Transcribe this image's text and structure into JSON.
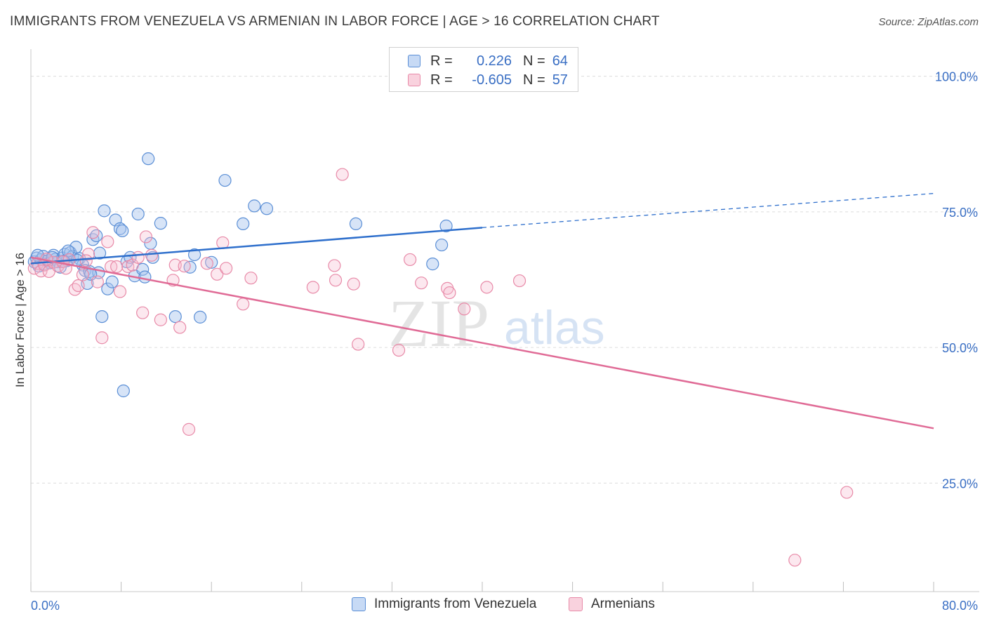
{
  "title": "IMMIGRANTS FROM VENEZUELA VS ARMENIAN IN LABOR FORCE | AGE > 16 CORRELATION CHART",
  "source": "Source: ZipAtlas.com",
  "watermark": {
    "zip": "ZIP",
    "atlas": "atlas"
  },
  "legend_top": {
    "rows": [
      {
        "r_label": "R =",
        "r_value": "0.226",
        "n_label": "N =",
        "n_value": "64",
        "color": "#5b8fd6",
        "fill": "#b9d0f2"
      },
      {
        "r_label": "R =",
        "r_value": "-0.605",
        "n_label": "N =",
        "n_value": "57",
        "color": "#e88aa8",
        "fill": "#f7c9d7"
      }
    ]
  },
  "legend_bottom": {
    "items": [
      {
        "label": "Immigrants from Venezuela"
      },
      {
        "label": "Armenians"
      }
    ]
  },
  "colors": {
    "blue_stroke": "#5b8fd6",
    "blue_fill": "rgba(166,196,238,0.45)",
    "blue_line": "#2e6fcc",
    "pink_stroke": "#e88aa8",
    "pink_fill": "rgba(245,190,208,0.35)",
    "pink_line": "#e06b96",
    "axis_label": "#3a6fc4",
    "grid": "#dcdcdc"
  },
  "chart_data": {
    "type": "scatter",
    "ylabel": "In Labor Force | Age > 16",
    "xlim": [
      0,
      80
    ],
    "ylim": [
      5,
      105
    ],
    "x_tick_labels": [
      {
        "value": 0,
        "label": "0.0%"
      },
      {
        "value": 80,
        "label": "80.0%"
      }
    ],
    "y_tick_labels": [
      {
        "value": 100,
        "label": "100.0%"
      },
      {
        "value": 75,
        "label": "75.0%"
      },
      {
        "value": 50,
        "label": "50.0%"
      },
      {
        "value": 25,
        "label": "25.0%"
      }
    ],
    "y_gridlines": [
      100,
      75,
      50,
      25
    ],
    "x_minor_ticks": [
      0,
      8,
      16,
      24,
      32,
      40,
      48,
      56,
      64,
      72,
      80
    ],
    "series": [
      {
        "name": "Immigrants from Venezuela",
        "color": "#5b8fd6",
        "points": [
          [
            0.3,
            65.8
          ],
          [
            0.5,
            66.5
          ],
          [
            0.7,
            65.0
          ],
          [
            0.9,
            66.2
          ],
          [
            1.1,
            66.8
          ],
          [
            1.2,
            65.4
          ],
          [
            1.5,
            66.0
          ],
          [
            1.7,
            65.6
          ],
          [
            2.0,
            67.0
          ],
          [
            2.2,
            66.3
          ],
          [
            2.4,
            65.8
          ],
          [
            2.6,
            64.8
          ],
          [
            2.8,
            66.5
          ],
          [
            3.0,
            67.2
          ],
          [
            3.2,
            66.0
          ],
          [
            3.5,
            67.5
          ],
          [
            3.7,
            66.8
          ],
          [
            4.0,
            68.5
          ],
          [
            4.3,
            66.4
          ],
          [
            4.6,
            65.2
          ],
          [
            4.8,
            64.2
          ],
          [
            5.0,
            61.8
          ],
          [
            5.2,
            64.0
          ],
          [
            5.5,
            69.9
          ],
          [
            5.8,
            70.6
          ],
          [
            6.0,
            63.8
          ],
          [
            6.3,
            55.7
          ],
          [
            6.5,
            75.2
          ],
          [
            6.8,
            60.8
          ],
          [
            7.2,
            62.1
          ],
          [
            7.5,
            73.5
          ],
          [
            7.9,
            71.9
          ],
          [
            8.1,
            71.5
          ],
          [
            8.2,
            42.0
          ],
          [
            8.5,
            65.8
          ],
          [
            8.8,
            66.6
          ],
          [
            9.2,
            63.2
          ],
          [
            9.5,
            74.6
          ],
          [
            9.9,
            64.4
          ],
          [
            10.1,
            63.0
          ],
          [
            10.4,
            84.8
          ],
          [
            10.6,
            69.2
          ],
          [
            10.8,
            66.6
          ],
          [
            11.5,
            72.9
          ],
          [
            12.8,
            55.7
          ],
          [
            14.1,
            64.8
          ],
          [
            14.5,
            67.1
          ],
          [
            15.0,
            55.6
          ],
          [
            16.0,
            65.7
          ],
          [
            17.2,
            80.8
          ],
          [
            18.8,
            72.8
          ],
          [
            19.8,
            76.1
          ],
          [
            20.9,
            75.6
          ],
          [
            28.8,
            72.8
          ],
          [
            35.6,
            65.4
          ],
          [
            36.4,
            68.9
          ],
          [
            36.8,
            72.4
          ],
          [
            0.6,
            67.0
          ],
          [
            1.9,
            66.6
          ],
          [
            3.3,
            67.8
          ],
          [
            4.1,
            66.1
          ],
          [
            5.3,
            63.5
          ],
          [
            6.1,
            67.4
          ],
          [
            2.9,
            65.9
          ]
        ]
      },
      {
        "name": "Armenians",
        "color": "#e88aa8",
        "points": [
          [
            0.3,
            64.6
          ],
          [
            0.6,
            65.5
          ],
          [
            0.9,
            64.1
          ],
          [
            1.2,
            65.2
          ],
          [
            1.6,
            64.0
          ],
          [
            2.0,
            65.7
          ],
          [
            2.4,
            65.0
          ],
          [
            2.8,
            65.8
          ],
          [
            3.1,
            64.6
          ],
          [
            3.4,
            66.2
          ],
          [
            3.9,
            60.7
          ],
          [
            4.2,
            61.4
          ],
          [
            4.6,
            63.4
          ],
          [
            5.1,
            67.2
          ],
          [
            5.5,
            71.2
          ],
          [
            5.9,
            62.1
          ],
          [
            6.3,
            51.8
          ],
          [
            6.8,
            69.5
          ],
          [
            7.1,
            64.9
          ],
          [
            7.6,
            64.9
          ],
          [
            7.9,
            60.3
          ],
          [
            8.6,
            64.9
          ],
          [
            9.0,
            65.2
          ],
          [
            9.5,
            66.6
          ],
          [
            9.9,
            56.4
          ],
          [
            10.2,
            70.4
          ],
          [
            10.7,
            67.0
          ],
          [
            11.5,
            55.1
          ],
          [
            12.6,
            62.4
          ],
          [
            12.8,
            65.2
          ],
          [
            13.2,
            53.7
          ],
          [
            13.6,
            65.0
          ],
          [
            14.0,
            34.9
          ],
          [
            15.6,
            65.5
          ],
          [
            16.5,
            63.5
          ],
          [
            17.0,
            69.3
          ],
          [
            17.3,
            64.6
          ],
          [
            18.8,
            58.0
          ],
          [
            19.5,
            62.8
          ],
          [
            25.0,
            61.1
          ],
          [
            26.9,
            65.1
          ],
          [
            27.0,
            62.4
          ],
          [
            27.6,
            81.9
          ],
          [
            28.6,
            61.7
          ],
          [
            29.0,
            50.6
          ],
          [
            32.6,
            49.5
          ],
          [
            33.6,
            66.2
          ],
          [
            34.6,
            61.9
          ],
          [
            36.9,
            60.9
          ],
          [
            37.1,
            60.1
          ],
          [
            38.4,
            57.1
          ],
          [
            40.4,
            61.1
          ],
          [
            43.3,
            62.3
          ],
          [
            72.3,
            23.3
          ],
          [
            67.7,
            10.8
          ],
          [
            1.4,
            66.3
          ],
          [
            4.9,
            66.0
          ]
        ]
      }
    ],
    "trend_lines": [
      {
        "series": "Immigrants from Venezuela",
        "x0": 0,
        "y0": 65.5,
        "x1": 40,
        "y1": 72.1,
        "dashed_x1": 80,
        "dashed_y1": 78.4
      },
      {
        "series": "Armenians",
        "x0": 0,
        "y0": 66.6,
        "x1": 80,
        "y1": 35.1
      }
    ]
  }
}
